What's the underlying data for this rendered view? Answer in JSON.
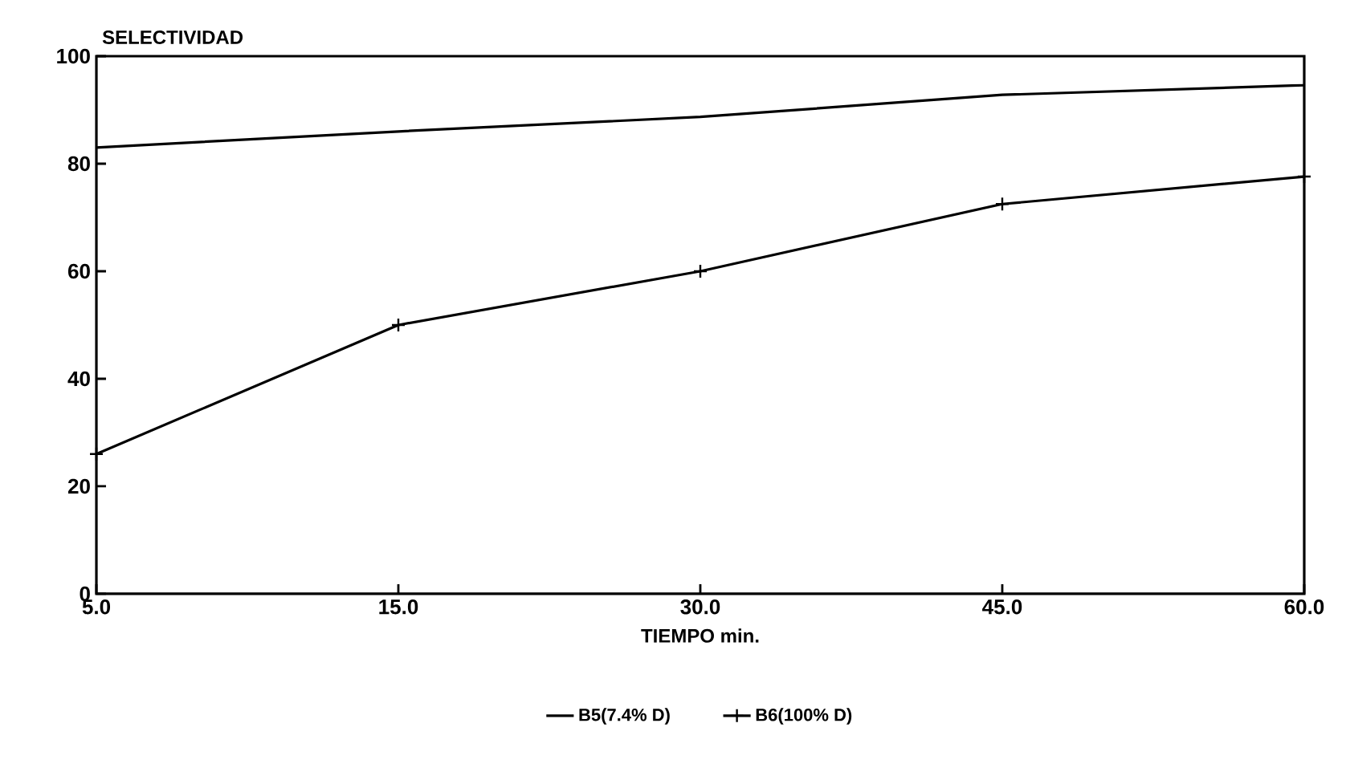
{
  "chart_data": {
    "type": "line",
    "ylabel": "SELECTIVIDAD",
    "xlabel": "TIEMPO min.",
    "categories": [
      "5.0",
      "15.0",
      "30.0",
      "45.0",
      "60.0"
    ],
    "series": [
      {
        "name": "B5(7.4% D)",
        "color": "#000000",
        "marker": "none",
        "values": [
          83,
          86,
          88.7,
          92.8,
          94.6
        ]
      },
      {
        "name": "B6(100% D)",
        "color": "#000000",
        "marker": "cross",
        "values": [
          26,
          50,
          60,
          72.5,
          77.6
        ]
      }
    ],
    "ylim": [
      0,
      100
    ],
    "yticks": [
      0,
      20,
      40,
      60,
      80,
      100
    ],
    "grid": false,
    "legend": "bottom"
  }
}
